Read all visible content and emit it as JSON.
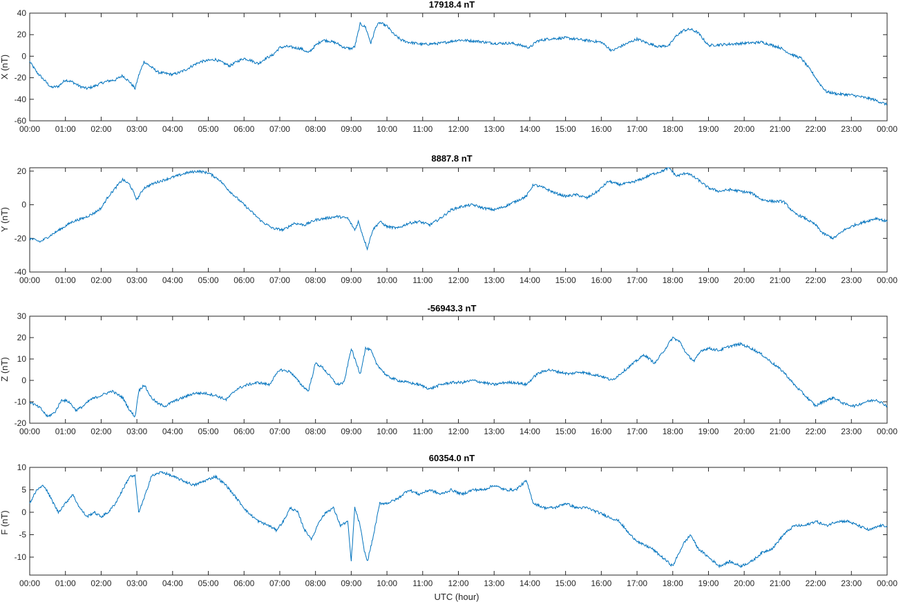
{
  "figure": {
    "line_color": "#0072BD",
    "axis_color": "#262626",
    "xlabel": "UTC (hour)"
  },
  "chart_data": [
    {
      "type": "line",
      "title": "17918.4 nT",
      "xlabel": "",
      "ylabel": "X (nT)",
      "xlim": [
        0,
        24
      ],
      "ylim": [
        -60,
        40
      ],
      "yticks": [
        -60,
        -40,
        -20,
        0,
        20,
        40
      ],
      "xtick_labels": [
        "00:00",
        "01:00",
        "02:00",
        "03:00",
        "04:00",
        "05:00",
        "06:00",
        "07:00",
        "08:00",
        "09:00",
        "10:00",
        "11:00",
        "12:00",
        "13:00",
        "14:00",
        "15:00",
        "16:00",
        "17:00",
        "18:00",
        "19:00",
        "20:00",
        "21:00",
        "22:00",
        "23:00",
        "00:00"
      ],
      "grid": false,
      "series": [
        {
          "x": [
            0,
            0.2,
            0.4,
            0.6,
            0.8,
            1.0,
            1.2,
            1.4,
            1.6,
            1.8,
            2.0,
            2.2,
            2.4,
            2.6,
            2.8,
            2.95,
            3.05,
            3.2,
            3.4,
            3.6,
            3.8,
            4.0,
            4.2,
            4.4,
            4.6,
            4.8,
            5.0,
            5.2,
            5.4,
            5.6,
            5.8,
            6.0,
            6.2,
            6.4,
            6.6,
            6.8,
            7.0,
            7.2,
            7.4,
            7.6,
            7.8,
            8.0,
            8.2,
            8.4,
            8.6,
            8.8,
            9.0,
            9.1,
            9.25,
            9.4,
            9.55,
            9.7,
            9.8,
            10.0,
            10.2,
            10.4,
            10.6,
            10.8,
            11.0,
            11.5,
            12.0,
            12.5,
            13.0,
            13.5,
            14.0,
            14.2,
            14.5,
            15.0,
            15.5,
            16.0,
            16.3,
            16.6,
            17.0,
            17.3,
            17.6,
            17.9,
            18.1,
            18.3,
            18.5,
            18.7,
            19.0,
            19.5,
            20.0,
            20.5,
            20.7,
            21.0,
            21.3,
            21.6,
            21.9,
            22.1,
            22.3,
            22.6,
            23.0,
            23.3,
            23.6,
            24.0
          ],
          "y": [
            -5,
            -15,
            -22,
            -29,
            -28,
            -22,
            -24,
            -28,
            -30,
            -28,
            -25,
            -23,
            -22,
            -18,
            -24,
            -30,
            -18,
            -5,
            -10,
            -15,
            -16,
            -17,
            -15,
            -12,
            -8,
            -5,
            -4,
            -3,
            -6,
            -9,
            -5,
            -2,
            -4,
            -7,
            -2,
            1,
            8,
            9,
            8,
            7,
            3,
            10,
            15,
            14,
            12,
            8,
            7,
            9,
            30,
            27,
            12,
            28,
            31,
            28,
            20,
            15,
            13,
            12,
            11,
            12,
            15,
            14,
            12,
            12,
            8,
            14,
            16,
            17,
            15,
            13,
            5,
            10,
            16,
            12,
            9,
            10,
            19,
            24,
            25,
            22,
            10,
            11,
            12,
            13,
            11,
            8,
            2,
            -2,
            -15,
            -25,
            -33,
            -35,
            -36,
            -38,
            -40,
            -45
          ]
        }
      ]
    },
    {
      "type": "line",
      "title": "8887.8 nT",
      "xlabel": "",
      "ylabel": "Y (nT)",
      "xlim": [
        0,
        24
      ],
      "ylim": [
        -40,
        22
      ],
      "yticks": [
        -40,
        -20,
        0,
        20
      ],
      "xtick_labels": [
        "00:00",
        "01:00",
        "02:00",
        "03:00",
        "04:00",
        "05:00",
        "06:00",
        "07:00",
        "08:00",
        "09:00",
        "10:00",
        "11:00",
        "12:00",
        "13:00",
        "14:00",
        "15:00",
        "16:00",
        "17:00",
        "18:00",
        "19:00",
        "20:00",
        "21:00",
        "22:00",
        "23:00",
        "00:00"
      ],
      "grid": false,
      "series": [
        {
          "x": [
            0,
            0.3,
            0.6,
            0.9,
            1.2,
            1.5,
            1.8,
            2.0,
            2.2,
            2.4,
            2.6,
            2.8,
            3.0,
            3.2,
            3.5,
            3.8,
            4.1,
            4.4,
            4.7,
            5.0,
            5.3,
            5.6,
            5.9,
            6.2,
            6.5,
            6.8,
            7.1,
            7.4,
            7.7,
            8.0,
            8.3,
            8.6,
            8.9,
            9.1,
            9.2,
            9.35,
            9.45,
            9.6,
            9.8,
            10.0,
            10.3,
            10.6,
            10.9,
            11.2,
            11.5,
            11.8,
            12.1,
            12.4,
            12.7,
            13.0,
            13.3,
            13.6,
            13.9,
            14.1,
            14.4,
            14.7,
            15.0,
            15.3,
            15.6,
            15.9,
            16.2,
            16.5,
            16.8,
            17.1,
            17.4,
            17.7,
            17.9,
            18.1,
            18.4,
            18.7,
            19.0,
            19.3,
            19.6,
            19.9,
            20.2,
            20.5,
            20.8,
            21.1,
            21.4,
            21.7,
            22.0,
            22.2,
            22.5,
            22.8,
            23.1,
            23.4,
            23.7,
            24.0
          ],
          "y": [
            -20,
            -22,
            -18,
            -14,
            -10,
            -8,
            -5,
            -2,
            5,
            10,
            15,
            12,
            3,
            10,
            13,
            15,
            17,
            19,
            20,
            19,
            15,
            8,
            2,
            -4,
            -10,
            -14,
            -15,
            -11,
            -12,
            -9,
            -8,
            -7,
            -8,
            -15,
            -10,
            -20,
            -26,
            -15,
            -10,
            -13,
            -14,
            -11,
            -10,
            -12,
            -8,
            -3,
            -1,
            0,
            -2,
            -3,
            -1,
            2,
            5,
            12,
            10,
            7,
            5,
            6,
            4,
            8,
            14,
            12,
            13,
            15,
            18,
            20,
            22,
            17,
            19,
            15,
            10,
            8,
            9,
            8,
            7,
            3,
            2,
            2,
            -5,
            -8,
            -12,
            -17,
            -20,
            -15,
            -12,
            -10,
            -8,
            -10
          ]
        }
      ]
    },
    {
      "type": "line",
      "title": "-56943.3 nT",
      "xlabel": "",
      "ylabel": "Z (nT)",
      "xlim": [
        0,
        24
      ],
      "ylim": [
        -20,
        30
      ],
      "yticks": [
        -20,
        -10,
        0,
        10,
        20,
        30
      ],
      "xtick_labels": [
        "00:00",
        "01:00",
        "02:00",
        "03:00",
        "04:00",
        "05:00",
        "06:00",
        "07:00",
        "08:00",
        "09:00",
        "10:00",
        "11:00",
        "12:00",
        "13:00",
        "14:00",
        "15:00",
        "16:00",
        "17:00",
        "18:00",
        "19:00",
        "20:00",
        "21:00",
        "22:00",
        "23:00",
        "00:00"
      ],
      "grid": false,
      "series": [
        {
          "x": [
            0,
            0.3,
            0.5,
            0.7,
            0.9,
            1.1,
            1.3,
            1.5,
            1.7,
            2.0,
            2.3,
            2.6,
            2.8,
            2.95,
            3.05,
            3.2,
            3.4,
            3.6,
            3.8,
            4.0,
            4.3,
            4.6,
            4.9,
            5.2,
            5.5,
            5.8,
            6.1,
            6.4,
            6.7,
            7.0,
            7.3,
            7.6,
            7.8,
            8.0,
            8.2,
            8.4,
            8.6,
            8.8,
            9.0,
            9.1,
            9.25,
            9.4,
            9.55,
            9.7,
            9.85,
            10.0,
            10.3,
            10.6,
            10.9,
            11.2,
            11.5,
            11.8,
            12.1,
            12.4,
            12.7,
            13.0,
            13.3,
            13.6,
            13.9,
            14.2,
            14.5,
            14.8,
            15.1,
            15.4,
            15.7,
            16.0,
            16.3,
            16.6,
            16.9,
            17.2,
            17.5,
            17.8,
            18.0,
            18.2,
            18.4,
            18.6,
            18.8,
            19.0,
            19.3,
            19.6,
            19.9,
            20.2,
            20.5,
            20.8,
            21.1,
            21.4,
            21.7,
            22.0,
            22.2,
            22.5,
            22.8,
            23.1,
            23.4,
            23.7,
            24.0
          ],
          "y": [
            -10,
            -13,
            -17,
            -15,
            -9,
            -10,
            -14,
            -12,
            -9,
            -7,
            -5,
            -8,
            -14,
            -17,
            -5,
            -2,
            -8,
            -11,
            -12,
            -10,
            -8,
            -6,
            -6,
            -7,
            -9,
            -4,
            -2,
            -1,
            -2,
            5,
            4,
            -2,
            -5,
            8,
            6,
            2,
            -2,
            -1,
            15,
            10,
            3,
            15,
            14,
            8,
            5,
            2,
            0,
            -1,
            -2,
            -4,
            -2,
            -1,
            -1,
            0,
            -1,
            -2,
            -1,
            -1,
            -2,
            3,
            5,
            4,
            3,
            4,
            3,
            2,
            0,
            4,
            8,
            12,
            8,
            15,
            20,
            18,
            12,
            9,
            14,
            15,
            14,
            16,
            17,
            15,
            12,
            8,
            4,
            -2,
            -7,
            -12,
            -10,
            -8,
            -11,
            -12,
            -10,
            -9,
            -12
          ]
        }
      ]
    },
    {
      "type": "line",
      "title": "60354.0 nT",
      "xlabel": "UTC (hour)",
      "ylabel": "F (nT)",
      "xlim": [
        0,
        24
      ],
      "ylim": [
        -14,
        10
      ],
      "yticks": [
        -10,
        -5,
        0,
        5,
        10
      ],
      "xtick_labels": [
        "00:00",
        "01:00",
        "02:00",
        "03:00",
        "04:00",
        "05:00",
        "06:00",
        "07:00",
        "08:00",
        "09:00",
        "10:00",
        "11:00",
        "12:00",
        "13:00",
        "14:00",
        "15:00",
        "16:00",
        "17:00",
        "18:00",
        "19:00",
        "20:00",
        "21:00",
        "22:00",
        "23:00",
        "00:00"
      ],
      "grid": false,
      "series": [
        {
          "x": [
            0,
            0.2,
            0.4,
            0.6,
            0.8,
            1.0,
            1.2,
            1.4,
            1.6,
            1.8,
            2.0,
            2.2,
            2.4,
            2.6,
            2.8,
            2.95,
            3.05,
            3.2,
            3.4,
            3.7,
            4.0,
            4.3,
            4.6,
            4.9,
            5.2,
            5.5,
            5.8,
            6.1,
            6.4,
            6.7,
            6.9,
            7.1,
            7.3,
            7.5,
            7.7,
            7.9,
            8.1,
            8.3,
            8.5,
            8.7,
            8.9,
            9.0,
            9.1,
            9.25,
            9.35,
            9.45,
            9.6,
            9.8,
            10.0,
            10.3,
            10.6,
            10.9,
            11.2,
            11.5,
            11.8,
            12.1,
            12.4,
            12.7,
            13.0,
            13.3,
            13.6,
            13.9,
            14.1,
            14.4,
            14.7,
            15.0,
            15.3,
            15.6,
            15.9,
            16.2,
            16.5,
            16.8,
            17.1,
            17.4,
            17.7,
            18.0,
            18.3,
            18.5,
            18.7,
            19.0,
            19.3,
            19.6,
            19.9,
            20.2,
            20.5,
            20.8,
            21.1,
            21.4,
            21.7,
            22.0,
            22.3,
            22.6,
            22.9,
            23.2,
            23.5,
            23.8,
            24.0
          ],
          "y": [
            2,
            5,
            6,
            3,
            0,
            2,
            4,
            1,
            -1,
            0,
            -1,
            0,
            2,
            5,
            8,
            8,
            0,
            3,
            8,
            9,
            8,
            7,
            6,
            7,
            8,
            6,
            3,
            0,
            -2,
            -3,
            -4,
            -2,
            1,
            0,
            -4,
            -6,
            -2,
            0,
            1,
            -3,
            -2,
            -11,
            1,
            -3,
            -8,
            -11,
            -6,
            2,
            2,
            3,
            5,
            4,
            5,
            4,
            5,
            4,
            5,
            5,
            6,
            5,
            5,
            7,
            2,
            1,
            1,
            2,
            1,
            1,
            0,
            -1,
            -2,
            -5,
            -7,
            -8,
            -10,
            -12,
            -7,
            -5,
            -8,
            -10,
            -12,
            -11,
            -12,
            -11,
            -9,
            -8,
            -5,
            -3,
            -3,
            -2,
            -3,
            -2,
            -2,
            -3,
            -4,
            -3,
            -3
          ]
        }
      ]
    }
  ]
}
